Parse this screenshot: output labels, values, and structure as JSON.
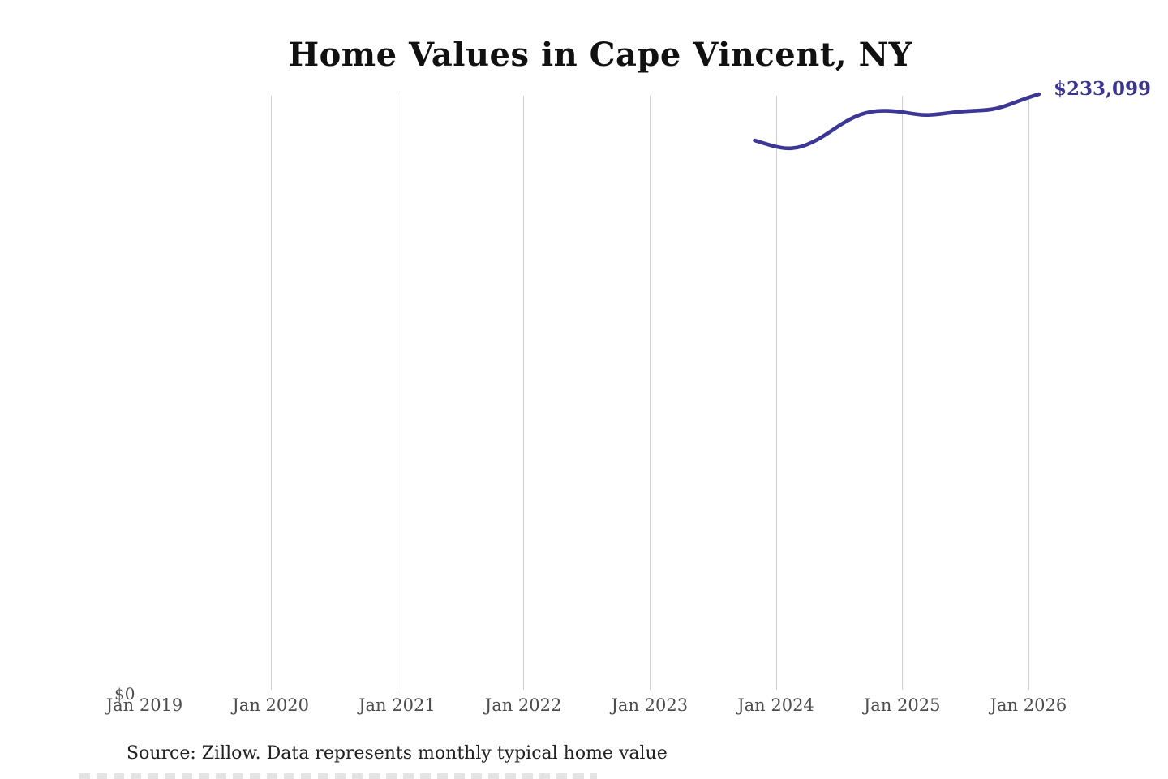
{
  "page": {
    "title": "Home Values in Cape Vincent, NY",
    "source_note": "Source: Zillow. Data represents monthly typical home value"
  },
  "colors": {
    "title": "#111111",
    "line": "#3c3694",
    "end_label": "#3b3592",
    "gridline": "#cfcfcf",
    "axis_label": "#4d4d4d",
    "source": "#222222"
  },
  "chart_data": {
    "type": "line",
    "title": "Home Values in Cape Vincent, NY",
    "xlabel": "",
    "ylabel": "",
    "grid": "vertical-only",
    "legend": "none",
    "x_tick_labels": [
      "Jan 2019",
      "Jan 2020",
      "Jan 2021",
      "Jan 2022",
      "Jan 2023",
      "Jan 2024",
      "Jan 2025",
      "Jan 2026"
    ],
    "y_tick_labels": [
      "$0"
    ],
    "ylim": [
      0,
      245000
    ],
    "end_point_label": "$233,099",
    "series": [
      {
        "name": "Monthly typical home value",
        "x": [
          "Nov 2023",
          "Dec 2023",
          "Jan 2024",
          "Feb 2024",
          "Mar 2024",
          "Apr 2024",
          "May 2024",
          "Jun 2024",
          "Jul 2024",
          "Aug 2024",
          "Sep 2024",
          "Oct 2024",
          "Nov 2024",
          "Dec 2024",
          "Jan 2025",
          "Feb 2025",
          "Mar 2025",
          "Apr 2025",
          "May 2025",
          "Jun 2025",
          "Jul 2025",
          "Aug 2025",
          "Sep 2025",
          "Oct 2025",
          "Nov 2025",
          "Dec 2025",
          "Jan 2026",
          "Feb 2026"
        ],
        "values": [
          215094,
          213792,
          212637,
          211911,
          212189,
          213466,
          215470,
          218034,
          220822,
          223305,
          225172,
          226255,
          226669,
          226561,
          226128,
          225478,
          224938,
          225079,
          225571,
          226086,
          226428,
          226653,
          226848,
          227516,
          228734,
          230318,
          231789,
          233099
        ]
      }
    ],
    "source": "Source: Zillow. Data represents monthly typical home value"
  }
}
